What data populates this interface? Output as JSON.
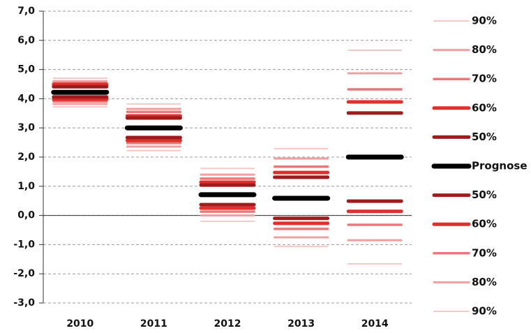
{
  "chart_data": {
    "type": "fan",
    "categories": [
      "2010",
      "2011",
      "2012",
      "2013",
      "2014"
    ],
    "ylim": [
      -3,
      7
    ],
    "yticks": [
      {
        "value": -3,
        "label": "-3,0"
      },
      {
        "value": -2,
        "label": "-2,0"
      },
      {
        "value": -1,
        "label": "-1,0"
      },
      {
        "value": 0,
        "label": "0,0"
      },
      {
        "value": 1,
        "label": "1,0"
      },
      {
        "value": 2,
        "label": "2,0"
      },
      {
        "value": 3,
        "label": "3,0"
      },
      {
        "value": 4,
        "label": "4,0"
      },
      {
        "value": 5,
        "label": "5,0"
      },
      {
        "value": 6,
        "label": "6,0"
      },
      {
        "value": 7,
        "label": "7,0"
      }
    ],
    "grid": true,
    "legend": "right",
    "series": [
      {
        "name": "90%",
        "color": "#f5c8c8",
        "values": [
          4.7,
          3.82,
          1.61,
          2.29,
          5.66
        ]
      },
      {
        "name": "80%",
        "color": "#ee9f9f",
        "values": [
          4.6,
          3.65,
          1.4,
          1.95,
          4.87
        ]
      },
      {
        "name": "70%",
        "color": "#e97878",
        "values": [
          4.53,
          3.55,
          1.26,
          1.67,
          4.32
        ]
      },
      {
        "name": "60%",
        "color": "#e0302e",
        "values": [
          4.49,
          3.41,
          1.14,
          1.47,
          3.89
        ]
      },
      {
        "name": "50%",
        "color": "#a01c1c",
        "values": [
          4.41,
          3.34,
          1.04,
          1.31,
          3.51
        ]
      },
      {
        "name": "Prognose",
        "color": "#000000",
        "values": [
          4.22,
          3.0,
          0.71,
          0.59,
          2.0
        ]
      },
      {
        "name": "50%",
        "color": "#a01c1c",
        "values": [
          4.06,
          2.67,
          0.37,
          -0.1,
          0.49
        ]
      },
      {
        "name": "60%",
        "color": "#e0302e",
        "values": [
          3.98,
          2.57,
          0.25,
          -0.27,
          0.14
        ]
      },
      {
        "name": "70%",
        "color": "#e97878",
        "values": [
          3.91,
          2.48,
          0.13,
          -0.46,
          -0.32
        ]
      },
      {
        "name": "80%",
        "color": "#ee9f9f",
        "values": [
          3.82,
          2.36,
          0.0,
          -0.75,
          -0.85
        ]
      },
      {
        "name": "90%",
        "color": "#f5c8c8",
        "values": [
          3.72,
          2.22,
          -0.2,
          -1.06,
          -1.66
        ]
      }
    ]
  }
}
